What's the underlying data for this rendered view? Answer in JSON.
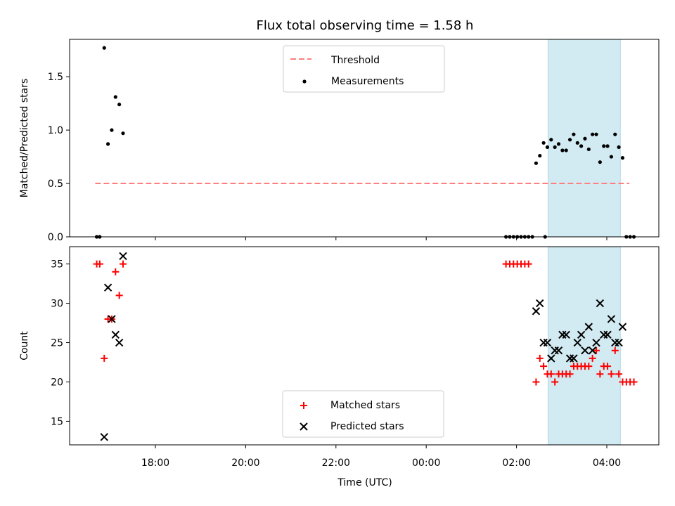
{
  "title": "Flux total observing time = 1.58 h",
  "xlabel": "Time (UTC)",
  "x_ticks": [
    "18:00",
    "20:00",
    "22:00",
    "00:00",
    "02:00",
    "04:00"
  ],
  "highlight_band": {
    "start": "02:42",
    "end": "04:18",
    "color": "#add8e6"
  },
  "chart_data": [
    {
      "type": "scatter",
      "ylabel": "Matched/Predicted stars",
      "ylim": [
        0,
        1.85
      ],
      "y_ticks": [
        "0.0",
        "0.5",
        "1.0",
        "1.5"
      ],
      "legend": {
        "placement": "top-center",
        "entries": [
          "Threshold",
          "Measurements"
        ]
      },
      "threshold": {
        "name": "Threshold",
        "value": 0.5,
        "x_range": [
          "16:40",
          "04:30"
        ],
        "color": "#ff7f7f",
        "style": "dashed"
      },
      "series": [
        {
          "name": "Measurements",
          "color": "#000000",
          "marker": "dot",
          "points": [
            [
              "16:42",
              0
            ],
            [
              "16:46",
              0
            ],
            [
              "16:52",
              1.77
            ],
            [
              "16:57",
              0.87
            ],
            [
              "17:02",
              1.0
            ],
            [
              "17:07",
              1.31
            ],
            [
              "17:12",
              1.24
            ],
            [
              "17:17",
              0.97
            ],
            [
              "01:46",
              0
            ],
            [
              "01:51",
              0
            ],
            [
              "01:56",
              0
            ],
            [
              "02:01",
              0
            ],
            [
              "02:06",
              0
            ],
            [
              "02:11",
              0
            ],
            [
              "02:16",
              0
            ],
            [
              "02:21",
              0
            ],
            [
              "02:38",
              0
            ],
            [
              "02:26",
              0.69
            ],
            [
              "02:31",
              0.76
            ],
            [
              "02:36",
              0.88
            ],
            [
              "02:41",
              0.84
            ],
            [
              "02:46",
              0.91
            ],
            [
              "02:51",
              0.84
            ],
            [
              "02:56",
              0.87
            ],
            [
              "03:01",
              0.81
            ],
            [
              "03:06",
              0.81
            ],
            [
              "03:11",
              0.91
            ],
            [
              "03:16",
              0.96
            ],
            [
              "03:21",
              0.88
            ],
            [
              "03:26",
              0.85
            ],
            [
              "03:31",
              0.92
            ],
            [
              "03:36",
              0.82
            ],
            [
              "03:41",
              0.96
            ],
            [
              "03:46",
              0.96
            ],
            [
              "03:51",
              0.7
            ],
            [
              "03:56",
              0.85
            ],
            [
              "04:01",
              0.85
            ],
            [
              "04:06",
              0.75
            ],
            [
              "04:11",
              0.96
            ],
            [
              "04:16",
              0.84
            ],
            [
              "04:21",
              0.74
            ],
            [
              "04:26",
              0
            ],
            [
              "04:31",
              0
            ],
            [
              "04:36",
              0
            ]
          ]
        }
      ]
    },
    {
      "type": "scatter",
      "ylabel": "Count",
      "ylim": [
        12,
        37.2
      ],
      "y_ticks": [
        "15",
        "20",
        "25",
        "30",
        "35"
      ],
      "legend": {
        "placement": "bottom-center",
        "entries": [
          "Matched stars",
          "Predicted stars"
        ]
      },
      "series": [
        {
          "name": "Matched stars",
          "color": "#ff0000",
          "marker": "plus",
          "points": [
            [
              "16:42",
              35
            ],
            [
              "16:46",
              35
            ],
            [
              "16:52",
              23
            ],
            [
              "16:57",
              28
            ],
            [
              "17:02",
              28
            ],
            [
              "17:07",
              34
            ],
            [
              "17:12",
              31
            ],
            [
              "17:17",
              35
            ],
            [
              "01:46",
              35
            ],
            [
              "01:51",
              35
            ],
            [
              "01:56",
              35
            ],
            [
              "02:01",
              35
            ],
            [
              "02:06",
              35
            ],
            [
              "02:11",
              35
            ],
            [
              "02:16",
              35
            ],
            [
              "02:26",
              20
            ],
            [
              "02:31",
              23
            ],
            [
              "02:36",
              22
            ],
            [
              "02:41",
              21
            ],
            [
              "02:46",
              21
            ],
            [
              "02:51",
              20
            ],
            [
              "02:56",
              21
            ],
            [
              "03:01",
              21
            ],
            [
              "03:06",
              21
            ],
            [
              "03:11",
              21
            ],
            [
              "03:16",
              22
            ],
            [
              "03:21",
              22
            ],
            [
              "03:26",
              22
            ],
            [
              "03:31",
              22
            ],
            [
              "03:36",
              22
            ],
            [
              "03:41",
              23
            ],
            [
              "03:46",
              24
            ],
            [
              "03:51",
              21
            ],
            [
              "03:56",
              22
            ],
            [
              "04:01",
              22
            ],
            [
              "04:06",
              21
            ],
            [
              "04:11",
              24
            ],
            [
              "04:16",
              21
            ],
            [
              "04:21",
              20
            ],
            [
              "04:26",
              20
            ],
            [
              "04:31",
              20
            ],
            [
              "04:36",
              20
            ]
          ]
        },
        {
          "name": "Predicted stars",
          "color": "#000000",
          "marker": "x",
          "points": [
            [
              "16:52",
              13
            ],
            [
              "16:57",
              32
            ],
            [
              "17:02",
              28
            ],
            [
              "17:07",
              26
            ],
            [
              "17:12",
              25
            ],
            [
              "17:17",
              36
            ],
            [
              "02:26",
              29
            ],
            [
              "02:31",
              30
            ],
            [
              "02:36",
              25
            ],
            [
              "02:41",
              25
            ],
            [
              "02:46",
              23
            ],
            [
              "02:51",
              24
            ],
            [
              "02:56",
              24
            ],
            [
              "03:01",
              26
            ],
            [
              "03:06",
              26
            ],
            [
              "03:11",
              23
            ],
            [
              "03:16",
              23
            ],
            [
              "03:21",
              25
            ],
            [
              "03:26",
              26
            ],
            [
              "03:31",
              24
            ],
            [
              "03:36",
              27
            ],
            [
              "03:41",
              24
            ],
            [
              "03:46",
              25
            ],
            [
              "03:51",
              30
            ],
            [
              "03:56",
              26
            ],
            [
              "04:01",
              26
            ],
            [
              "04:06",
              28
            ],
            [
              "04:11",
              25
            ],
            [
              "04:16",
              25
            ],
            [
              "04:21",
              27
            ]
          ]
        }
      ]
    }
  ]
}
